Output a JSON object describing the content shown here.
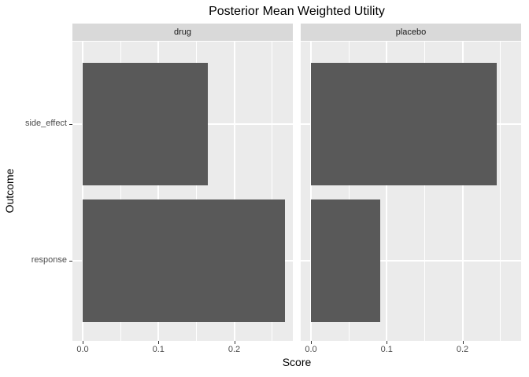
{
  "chart_data": {
    "type": "bar",
    "orientation": "horizontal",
    "title": "Posterior Mean Weighted Utility",
    "xlabel": "Score",
    "ylabel": "Outcome",
    "facets": [
      "drug",
      "placebo"
    ],
    "categories": [
      "side_effect",
      "response"
    ],
    "series": [
      {
        "name": "drug",
        "values": {
          "side_effect": 0.165,
          "response": 0.267
        }
      },
      {
        "name": "placebo",
        "values": {
          "side_effect": 0.245,
          "response": 0.091
        }
      }
    ],
    "x_ticks": [
      0,
      0.1,
      0.2
    ],
    "x_tick_labels": [
      "0.0",
      "0.1",
      "0.2"
    ],
    "x_minor_ticks": [
      0.05,
      0.15,
      0.25
    ],
    "xlim": [
      -0.0135,
      0.2774
    ],
    "grid": true,
    "legend": false,
    "theme": "ggplot2-grey"
  },
  "colors": {
    "bar": "#595959",
    "panel_bg": "#EBEBEB",
    "strip_bg": "#D9D9D9",
    "gridline": "#FFFFFF",
    "axis_text": "#4D4D4D",
    "tick_mark": "#333333",
    "title_text": "#000000",
    "page_bg": "#FFFFFF"
  }
}
